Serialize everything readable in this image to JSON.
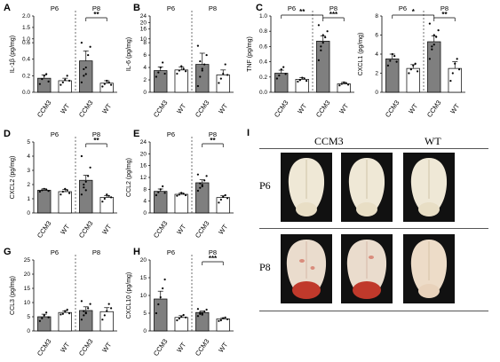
{
  "chart_data": [
    {
      "panel": "A",
      "type": "bar",
      "ylabel": "IL-1β (pg/mg)",
      "groups": [
        "P6",
        "P8"
      ],
      "categories": [
        "CCM3",
        "WT",
        "CCM3",
        "WT"
      ],
      "values": [
        0.17,
        0.14,
        0.38,
        0.11
      ],
      "errors": [
        0.04,
        0.03,
        0.12,
        0.03
      ],
      "yticks": [
        "0.0",
        "0.2",
        "0.4",
        "0.6",
        "1.0",
        "1.5",
        "2.0"
      ],
      "points": [
        [
          0.1,
          0.16,
          0.2,
          0.22,
          0.13
        ],
        [
          0.09,
          0.12,
          0.15,
          0.2,
          0.14
        ],
        [
          0.12,
          0.2,
          0.3,
          0.45,
          0.55,
          0.6,
          0.28,
          0.22
        ],
        [
          0.07,
          0.1,
          0.14,
          0.12,
          0.09
        ]
      ],
      "significance": [
        {
          "between": [
            2,
            3
          ],
          "label": "**"
        }
      ]
    },
    {
      "panel": "B",
      "type": "bar",
      "ylabel": "IL-6 (pg/mg)",
      "groups": [
        "P6",
        "P8"
      ],
      "categories": [
        "CCM3",
        "WT",
        "CCM3",
        "WT"
      ],
      "values": [
        3.5,
        3.6,
        4.5,
        2.8
      ],
      "errors": [
        0.6,
        0.5,
        1.8,
        0.8
      ],
      "yticks": [
        "0",
        "2",
        "4",
        "6",
        "8",
        "10",
        "16",
        "20",
        "24"
      ],
      "points": [
        [
          2.5,
          3.2,
          4.0,
          4.8,
          3.0
        ],
        [
          3.0,
          3.5,
          4.2,
          3.8,
          3.4
        ],
        [
          1.0,
          2.5,
          3.5,
          4.5,
          6.0,
          7.5,
          5.0,
          3.8
        ],
        [
          1.5,
          2.2,
          3.0,
          4.5,
          2.8
        ]
      ],
      "significance": []
    },
    {
      "panel": "C",
      "type": "bar",
      "ylabel": "TNF (pg/mg)",
      "groups": [
        "P6",
        "P8"
      ],
      "categories": [
        "CCM3",
        "WT",
        "CCM3",
        "WT"
      ],
      "values": [
        0.25,
        0.17,
        0.67,
        0.11
      ],
      "errors": [
        0.04,
        0.02,
        0.07,
        0.02
      ],
      "yticks": [
        "0.0",
        "0.2",
        "0.4",
        "0.6",
        "0.8",
        "1.0"
      ],
      "points": [
        [
          0.18,
          0.22,
          0.3,
          0.33,
          0.24
        ],
        [
          0.14,
          0.16,
          0.19,
          0.18,
          0.15
        ],
        [
          0.42,
          0.55,
          0.65,
          0.72,
          0.8,
          0.88,
          0.6,
          0.75
        ],
        [
          0.09,
          0.11,
          0.13,
          0.12,
          0.1
        ]
      ],
      "significance": [
        {
          "between": [
            0,
            2
          ],
          "label": "**"
        },
        {
          "between": [
            2,
            3
          ],
          "label": "***"
        }
      ]
    },
    {
      "panel": "",
      "type": "bar",
      "ylabel": "CXCL1 (pg/mg)",
      "groups": [
        "P6",
        "P8"
      ],
      "categories": [
        "CCM3",
        "WT",
        "CCM3",
        "WT"
      ],
      "values": [
        3.5,
        2.5,
        5.3,
        2.5
      ],
      "errors": [
        0.5,
        0.4,
        0.6,
        0.7
      ],
      "yticks": [
        "0",
        "2",
        "4",
        "6",
        "8"
      ],
      "points": [
        [
          2.8,
          3.3,
          4.0,
          3.8,
          3.2
        ],
        [
          2.0,
          2.4,
          2.8,
          3.0,
          2.2
        ],
        [
          3.5,
          4.5,
          5.0,
          5.8,
          6.5,
          7.2,
          4.8,
          6.0
        ],
        [
          1.2,
          2.0,
          3.0,
          3.5,
          2.4
        ]
      ],
      "significance": [
        {
          "between": [
            0,
            2
          ],
          "label": "*"
        },
        {
          "between": [
            2,
            3
          ],
          "label": "**"
        }
      ]
    },
    {
      "panel": "D",
      "type": "bar",
      "ylabel": "CXCL2 (pg/mg)",
      "groups": [
        "P6",
        "P8"
      ],
      "categories": [
        "CCM3",
        "WT",
        "CCM3",
        "WT"
      ],
      "values": [
        1.6,
        1.5,
        2.3,
        1.1
      ],
      "errors": [
        0.1,
        0.15,
        0.35,
        0.12
      ],
      "yticks": [
        "0",
        "1",
        "2",
        "3",
        "4",
        "5"
      ],
      "points": [
        [
          1.5,
          1.6,
          1.7,
          1.65,
          1.55
        ],
        [
          1.3,
          1.5,
          1.7,
          1.6,
          1.4
        ],
        [
          1.3,
          1.8,
          2.2,
          2.6,
          3.2,
          4.0,
          2.0,
          1.6
        ],
        [
          0.8,
          1.0,
          1.3,
          1.2,
          1.1
        ]
      ],
      "significance": [
        {
          "between": [
            2,
            3
          ],
          "label": "**"
        }
      ]
    },
    {
      "panel": "E",
      "type": "bar",
      "ylabel": "CCL2 (pg/mg)",
      "groups": [
        "P6",
        "P8"
      ],
      "categories": [
        "CCM3",
        "WT",
        "CCM3",
        "WT"
      ],
      "values": [
        7.3,
        6.3,
        10.2,
        5.2
      ],
      "errors": [
        0.8,
        0.4,
        1.0,
        0.6
      ],
      "yticks": [
        "0",
        "4",
        "8",
        "12",
        "16",
        "20",
        "24"
      ],
      "points": [
        [
          6.0,
          7.0,
          8.0,
          9.0,
          6.8
        ],
        [
          5.8,
          6.2,
          6.8,
          6.5,
          6.0
        ],
        [
          7.5,
          8.5,
          9.5,
          11.0,
          12.5,
          13.0,
          10.0,
          9.0
        ],
        [
          3.5,
          4.5,
          5.5,
          6.0,
          5.0
        ]
      ],
      "significance": [
        {
          "between": [
            2,
            3
          ],
          "label": "**"
        }
      ]
    },
    {
      "panel": "G",
      "type": "bar",
      "ylabel": "CCL3 (pg/mg)",
      "groups": [
        "P6",
        "P8"
      ],
      "categories": [
        "CCM3",
        "WT",
        "CCM3",
        "WT"
      ],
      "values": [
        5.0,
        6.5,
        7.2,
        6.8
      ],
      "errors": [
        0.9,
        0.6,
        1.3,
        1.4
      ],
      "yticks": [
        "0",
        "5",
        "10",
        "15",
        "20",
        "25"
      ],
      "points": [
        [
          3.5,
          4.5,
          5.5,
          6.5,
          4.8
        ],
        [
          5.8,
          6.0,
          7.0,
          7.5,
          6.2
        ],
        [
          4.0,
          5.5,
          6.5,
          8.0,
          9.5,
          10.5,
          7.0,
          6.2
        ],
        [
          4.0,
          5.5,
          7.0,
          9.5,
          8.0
        ]
      ],
      "significance": []
    },
    {
      "panel": "H",
      "type": "bar",
      "ylabel": "CXCL10 (pg/mg)",
      "groups": [
        "P6",
        "P8"
      ],
      "categories": [
        "CCM3",
        "WT",
        "CCM3",
        "WT"
      ],
      "values": [
        9.0,
        3.8,
        5.2,
        3.4
      ],
      "errors": [
        2.2,
        0.5,
        0.4,
        0.3
      ],
      "yticks": [
        "0",
        "5",
        "10",
        "15",
        "20"
      ],
      "points": [
        [
          5.0,
          7.5,
          9.5,
          12.0,
          14.5
        ],
        [
          3.0,
          3.5,
          4.0,
          4.5,
          3.8
        ],
        [
          4.2,
          4.8,
          5.0,
          5.5,
          6.0,
          6.2,
          5.2,
          4.6
        ],
        [
          2.8,
          3.0,
          3.6,
          3.8,
          3.3
        ]
      ],
      "significance": [
        {
          "between": [
            2,
            3
          ],
          "label": "***"
        }
      ]
    }
  ],
  "photo_panel": {
    "panel": "I",
    "columns": [
      "CCM3",
      "WT"
    ],
    "rows": [
      "P6",
      "P8"
    ]
  },
  "colors": {
    "ccm3_bar": "#7f7f7f",
    "wt_bar": "#ffffff",
    "lesion": "#c0392b",
    "tissue": "#efe8d6"
  }
}
